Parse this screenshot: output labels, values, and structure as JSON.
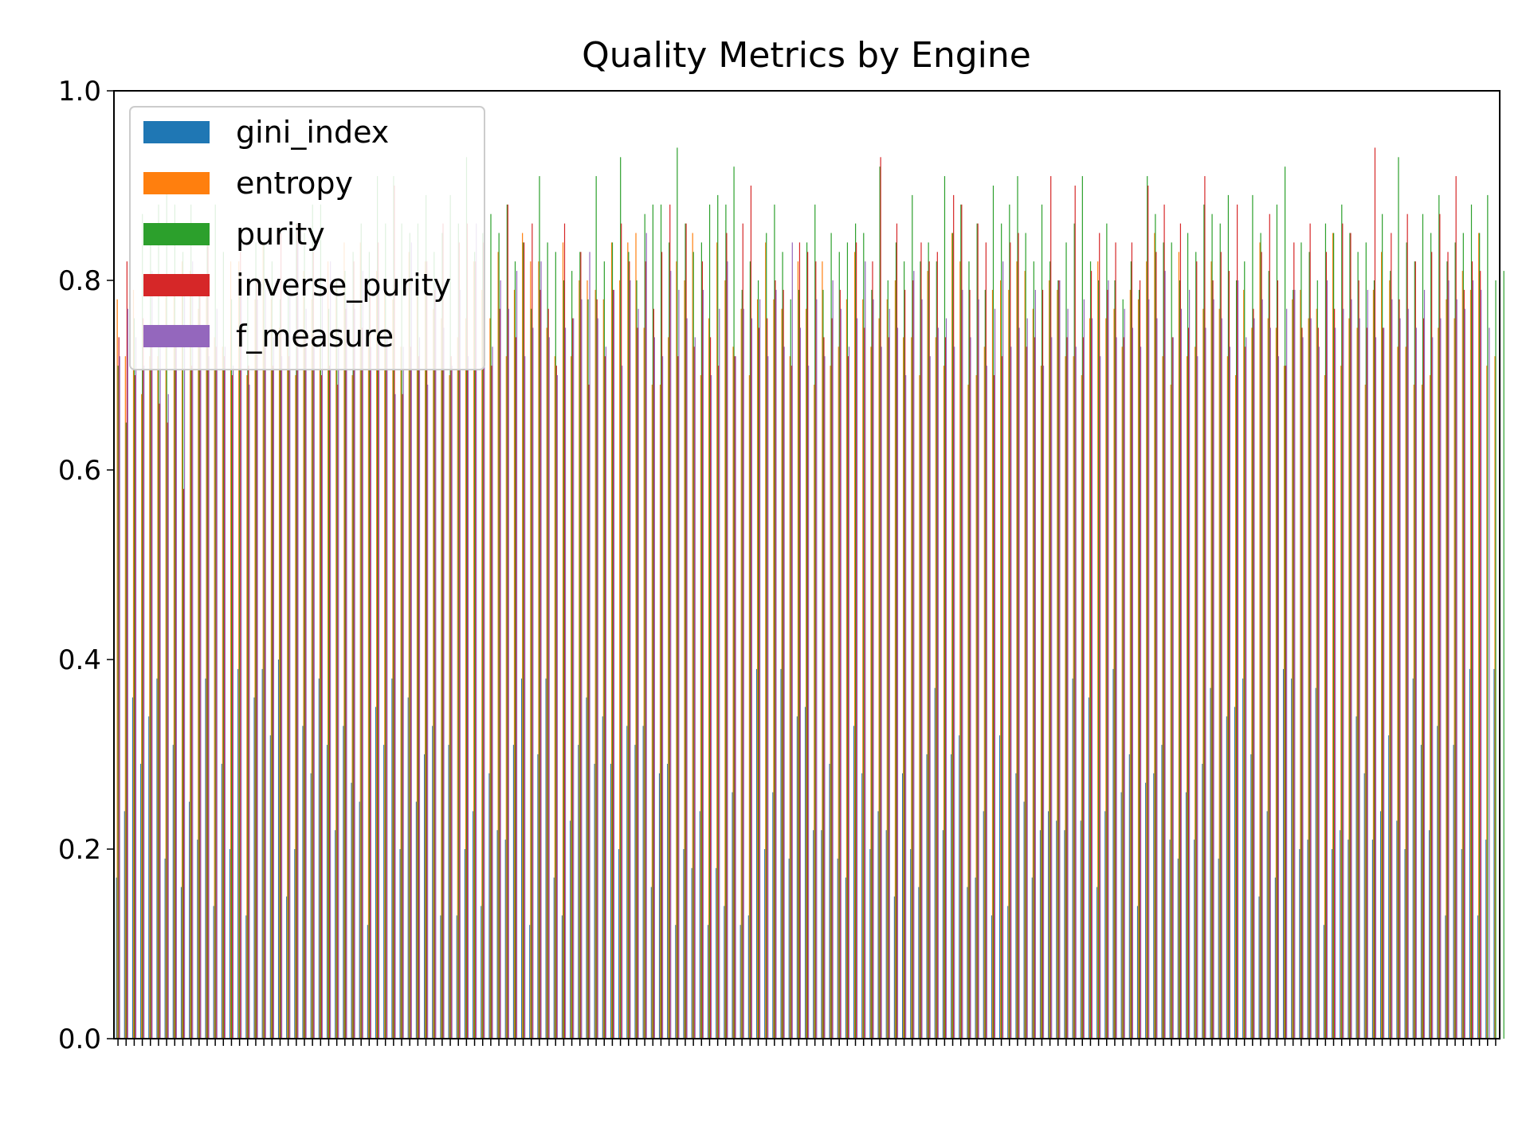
{
  "chart_data": {
    "type": "bar",
    "title": "Quality Metrics by Engine",
    "xlabel": "",
    "ylabel": "",
    "ylim": [
      0,
      1.0
    ],
    "yticks": [
      "0.0",
      "0.2",
      "0.4",
      "0.6",
      "0.8",
      "1.0"
    ],
    "legend_position": "top-left",
    "grid": false,
    "series": [
      {
        "name": "gini_index",
        "color": "#1f77b4",
        "values": [
          0.17,
          0.24,
          0.36,
          0.29,
          0.34,
          0.38,
          0.19,
          0.31,
          0.16,
          0.25,
          0.21,
          0.38,
          0.14,
          0.29,
          0.2,
          0.39,
          0.13,
          0.36,
          0.39,
          0.32,
          0.4,
          0.15,
          0.2,
          0.33,
          0.28,
          0.38,
          0.31,
          0.22,
          0.33,
          0.27,
          0.25,
          0.12,
          0.35,
          0.31,
          0.38,
          0.2,
          0.36,
          0.25,
          0.3,
          0.33,
          0.13,
          0.31,
          0.13,
          0.2,
          0.24,
          0.14,
          0.28,
          0.22,
          0.21,
          0.31,
          0.38,
          0.12,
          0.3,
          0.38,
          0.17,
          0.13,
          0.23,
          0.31,
          0.36,
          0.29,
          0.34,
          0.29,
          0.2,
          0.33,
          0.31,
          0.33,
          0.16,
          0.28,
          0.29,
          0.12,
          0.2,
          0.18,
          0.24,
          0.12,
          0.18,
          0.14,
          0.26,
          0.12,
          0.13,
          0.39,
          0.2,
          0.26,
          0.39,
          0.19,
          0.34,
          0.35,
          0.22,
          0.22,
          0.29,
          0.19,
          0.17,
          0.33,
          0.28,
          0.2,
          0.24,
          0.22,
          0.15,
          0.28,
          0.2,
          0.16,
          0.3,
          0.37,
          0.22,
          0.3,
          0.32,
          0.16,
          0.17,
          0.24,
          0.13,
          0.32,
          0.14,
          0.28,
          0.25,
          0.17,
          0.22,
          0.24,
          0.23,
          0.22,
          0.38,
          0.23,
          0.36,
          0.16,
          0.24,
          0.39,
          0.26,
          0.3,
          0.14,
          0.27,
          0.28,
          0.31,
          0.21,
          0.19,
          0.26,
          0.21,
          0.29,
          0.37,
          0.19,
          0.34,
          0.35,
          0.38,
          0.3,
          0.15,
          0.24,
          0.17,
          0.39,
          0.38,
          0.2,
          0.21,
          0.37,
          0.12,
          0.2,
          0.22,
          0.21,
          0.34,
          0.28,
          0.21,
          0.24,
          0.32,
          0.23,
          0.2,
          0.38,
          0.31,
          0.22,
          0.33,
          0.13,
          0.31,
          0.2,
          0.39,
          0.13,
          0.21,
          0.39
        ]
      },
      {
        "name": "entropy",
        "color": "#ff7f0e",
        "values": [
          0.78,
          0.72,
          0.79,
          0.68,
          0.72,
          0.72,
          0.79,
          0.8,
          0.82,
          0.81,
          0.77,
          0.79,
          0.74,
          0.73,
          0.82,
          0.82,
          0.7,
          0.78,
          0.84,
          0.78,
          0.75,
          0.73,
          0.7,
          0.81,
          0.78,
          0.73,
          0.82,
          0.8,
          0.84,
          0.7,
          0.84,
          0.73,
          0.81,
          0.8,
          0.78,
          0.73,
          0.83,
          0.79,
          0.82,
          0.77,
          0.76,
          0.7,
          0.74,
          0.76,
          0.82,
          0.79,
          0.76,
          0.83,
          0.72,
          0.79,
          0.85,
          0.82,
          0.82,
          0.75,
          0.72,
          0.84,
          0.72,
          0.8,
          0.8,
          0.79,
          0.78,
          0.84,
          0.8,
          0.84,
          0.85,
          0.75,
          0.69,
          0.69,
          0.74,
          0.82,
          0.8,
          0.85,
          0.7,
          0.76,
          0.84,
          0.8,
          0.73,
          0.77,
          0.7,
          0.78,
          0.84,
          0.78,
          0.77,
          0.72,
          0.82,
          0.77,
          0.69,
          0.82,
          0.71,
          0.73,
          0.78,
          0.83,
          0.78,
          0.73,
          0.76,
          0.78,
          0.8,
          0.74,
          0.74,
          0.7,
          0.81,
          0.74,
          0.71,
          0.85,
          0.82,
          0.69,
          0.7,
          0.73,
          0.79,
          0.8,
          0.79,
          0.82,
          0.81,
          0.77,
          0.71,
          0.8,
          0.79,
          0.72,
          0.72,
          0.7,
          0.76,
          0.82,
          0.76,
          0.77,
          0.73,
          0.79,
          0.78,
          0.82,
          0.85,
          0.72,
          0.69,
          0.83,
          0.72,
          0.73,
          0.77,
          0.82,
          0.77,
          0.72,
          0.7,
          0.79,
          0.75,
          0.84,
          0.76,
          0.75,
          0.71,
          0.78,
          0.79,
          0.76,
          0.77,
          0.7,
          0.85,
          0.71,
          0.76,
          0.75,
          0.69,
          0.79,
          0.83,
          0.8,
          0.73,
          0.73,
          0.69,
          0.69,
          0.7,
          0.75,
          0.78,
          0.76,
          0.81,
          0.79,
          0.85,
          0.71,
          0.72
        ]
      },
      {
        "name": "purity",
        "color": "#2ca02c",
        "values": [
          0.71,
          0.65,
          0.76,
          0.87,
          0.84,
          0.88,
          0.9,
          0.88,
          0.83,
          0.88,
          0.8,
          0.85,
          0.88,
          0.83,
          0.78,
          0.81,
          0.79,
          0.84,
          0.84,
          0.82,
          0.78,
          0.79,
          0.86,
          0.85,
          0.88,
          0.88,
          0.77,
          0.8,
          0.81,
          0.83,
          0.86,
          0.83,
          0.91,
          0.86,
          0.91,
          0.86,
          0.85,
          0.86,
          0.89,
          0.83,
          0.85,
          0.89,
          0.86,
          0.93,
          0.83,
          0.85,
          0.87,
          0.85,
          0.88,
          0.82,
          0.84,
          0.77,
          0.91,
          0.84,
          0.83,
          0.8,
          0.81,
          0.83,
          0.78,
          0.91,
          0.82,
          0.84,
          0.93,
          0.83,
          0.8,
          0.87,
          0.88,
          0.88,
          0.84,
          0.94,
          0.86,
          0.83,
          0.84,
          0.88,
          0.89,
          0.88,
          0.92,
          0.79,
          0.82,
          0.8,
          0.85,
          0.88,
          0.83,
          0.78,
          0.79,
          0.84,
          0.88,
          0.79,
          0.85,
          0.83,
          0.84,
          0.86,
          0.85,
          0.79,
          0.92,
          0.8,
          0.84,
          0.82,
          0.89,
          0.82,
          0.84,
          0.82,
          0.91,
          0.85,
          0.88,
          0.82,
          0.86,
          0.79,
          0.9,
          0.86,
          0.88,
          0.91,
          0.85,
          0.82,
          0.88,
          0.82,
          0.8,
          0.84,
          0.86,
          0.91,
          0.82,
          0.8,
          0.86,
          0.8,
          0.78,
          0.82,
          0.79,
          0.91,
          0.87,
          0.84,
          0.84,
          0.8,
          0.85,
          0.83,
          0.88,
          0.87,
          0.86,
          0.89,
          0.8,
          0.82,
          0.89,
          0.85,
          0.81,
          0.88,
          0.92,
          0.79,
          0.84,
          0.83,
          0.8,
          0.86,
          0.85,
          0.88,
          0.85,
          0.83,
          0.84,
          0.8,
          0.87,
          0.81,
          0.93,
          0.84,
          0.82,
          0.87,
          0.85,
          0.89,
          0.82,
          0.84,
          0.85,
          0.88,
          0.85,
          0.89,
          0.8,
          0.81
        ]
      },
      {
        "name": "inverse_purity",
        "color": "#d62728",
        "values": [
          0.74,
          0.82,
          0.7,
          0.76,
          0.73,
          0.67,
          0.65,
          0.74,
          0.58,
          0.71,
          0.8,
          0.84,
          0.73,
          0.72,
          0.7,
          0.83,
          0.71,
          0.8,
          0.74,
          0.71,
          0.85,
          0.72,
          0.86,
          0.74,
          0.83,
          0.7,
          0.71,
          0.69,
          0.77,
          0.82,
          0.75,
          0.79,
          0.84,
          0.73,
          0.9,
          0.68,
          0.73,
          0.72,
          0.82,
          0.79,
          0.86,
          0.72,
          0.84,
          0.86,
          0.82,
          0.84,
          0.71,
          0.77,
          0.88,
          0.74,
          0.84,
          0.86,
          0.79,
          0.77,
          0.71,
          0.86,
          0.76,
          0.83,
          0.69,
          0.78,
          0.72,
          0.79,
          0.86,
          0.82,
          0.75,
          0.82,
          0.77,
          0.83,
          0.88,
          0.72,
          0.86,
          0.73,
          0.82,
          0.74,
          0.71,
          0.85,
          0.72,
          0.86,
          0.9,
          0.75,
          0.76,
          0.8,
          0.79,
          0.71,
          0.84,
          0.83,
          0.82,
          0.74,
          0.76,
          0.79,
          0.72,
          0.84,
          0.75,
          0.82,
          0.93,
          0.74,
          0.86,
          0.79,
          0.8,
          0.84,
          0.82,
          0.83,
          0.74,
          0.89,
          0.88,
          0.79,
          0.86,
          0.84,
          0.7,
          0.72,
          0.84,
          0.85,
          0.73,
          0.74,
          0.79,
          0.91,
          0.8,
          0.74,
          0.9,
          0.74,
          0.81,
          0.85,
          0.79,
          0.84,
          0.74,
          0.84,
          0.8,
          0.9,
          0.83,
          0.88,
          0.74,
          0.86,
          0.75,
          0.82,
          0.91,
          0.8,
          0.83,
          0.81,
          0.88,
          0.73,
          0.77,
          0.83,
          0.87,
          0.8,
          0.71,
          0.84,
          0.75,
          0.86,
          0.75,
          0.83,
          0.77,
          0.86,
          0.85,
          0.8,
          0.75,
          0.94,
          0.75,
          0.85,
          0.78,
          0.87,
          0.82,
          0.76,
          0.83,
          0.87,
          0.83,
          0.91,
          0.79,
          0.82,
          0.81
        ]
      },
      {
        "name": "f_measure",
        "color": "#9467bd",
        "values": [
          0.72,
          0.77,
          0.74,
          0.71,
          0.81,
          0.75,
          0.68,
          0.74,
          0.79,
          0.82,
          0.74,
          0.72,
          0.77,
          0.73,
          0.71,
          0.8,
          0.69,
          0.78,
          0.79,
          0.74,
          0.72,
          0.8,
          0.84,
          0.77,
          0.74,
          0.79,
          0.82,
          0.75,
          0.78,
          0.77,
          0.81,
          0.73,
          0.8,
          0.75,
          0.68,
          0.73,
          0.84,
          0.74,
          0.69,
          0.8,
          0.75,
          0.71,
          0.79,
          0.72,
          0.86,
          0.76,
          0.73,
          0.8,
          0.77,
          0.81,
          0.72,
          0.75,
          0.82,
          0.74,
          0.7,
          0.75,
          0.76,
          0.78,
          0.83,
          0.76,
          0.73,
          0.79,
          0.71,
          0.8,
          0.77,
          0.85,
          0.74,
          0.72,
          0.81,
          0.79,
          0.76,
          0.74,
          0.79,
          0.7,
          0.77,
          0.82,
          0.72,
          0.77,
          0.76,
          0.78,
          0.72,
          0.79,
          0.73,
          0.84,
          0.75,
          0.71,
          0.78,
          0.72,
          0.8,
          0.77,
          0.73,
          0.76,
          0.82,
          0.78,
          0.73,
          0.77,
          0.75,
          0.7,
          0.81,
          0.78,
          0.72,
          0.75,
          0.76,
          0.73,
          0.79,
          0.74,
          0.78,
          0.71,
          0.77,
          0.82,
          0.73,
          0.75,
          0.76,
          0.79,
          0.71,
          0.74,
          0.8,
          0.77,
          0.73,
          0.78,
          0.76,
          0.72,
          0.8,
          0.74,
          0.77,
          0.75,
          0.73,
          0.78,
          0.76,
          0.81,
          0.74,
          0.77,
          0.79,
          0.72,
          0.75,
          0.78,
          0.76,
          0.73,
          0.8,
          0.74,
          0.76,
          0.78,
          0.75,
          0.72,
          0.77,
          0.79,
          0.74,
          0.76,
          0.73,
          0.8,
          0.75,
          0.77,
          0.78,
          0.76,
          0.79,
          0.74,
          0.75,
          0.78,
          0.76,
          0.77,
          0.75,
          0.79,
          0.74,
          0.76,
          0.8,
          0.78,
          0.77,
          0.8,
          0.79,
          0.75
        ]
      }
    ]
  }
}
